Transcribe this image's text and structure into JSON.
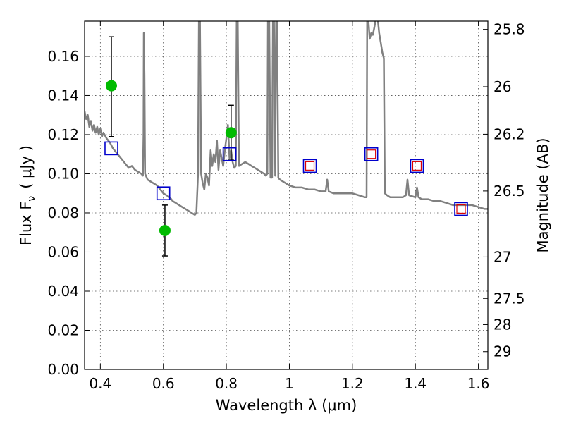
{
  "chart_data": {
    "type": "scatter",
    "title": "",
    "xlabel": "Wavelength  λ (μm)",
    "ylabel": "Flux  F",
    "ylabel_sub": "ν",
    "ylabel_unit": "( μJy )",
    "ylabel_right": "Magnitude (AB)",
    "xlim": [
      0.35,
      1.63
    ],
    "ylim": [
      0.0,
      0.178
    ],
    "x_ticks": [
      0.4,
      0.6,
      0.8,
      1.0,
      1.2,
      1.4,
      1.6
    ],
    "x_tick_labels": [
      "0.4",
      "0.6",
      "0.8",
      "1",
      "1.2",
      "1.4",
      "1.6"
    ],
    "y_ticks": [
      0.0,
      0.02,
      0.04,
      0.06,
      0.08,
      0.1,
      0.12,
      0.14,
      0.16
    ],
    "y_tick_labels": [
      "0.00",
      "0.02",
      "0.04",
      "0.06",
      "0.08",
      "0.10",
      "0.12",
      "0.14",
      "0.16"
    ],
    "right_ticks": [
      {
        "label": "25.8",
        "flux": 0.1738
      },
      {
        "label": "26",
        "flux": 0.1445
      },
      {
        "label": "26.2",
        "flux": 0.1202
      },
      {
        "label": "26.5",
        "flux": 0.0912
      },
      {
        "label": "27",
        "flux": 0.0575
      },
      {
        "label": "27.5",
        "flux": 0.0363
      },
      {
        "label": "28",
        "flux": 0.0229
      },
      {
        "label": "29",
        "flux": 0.0091
      }
    ],
    "grid": true,
    "colors": {
      "model": "#808080",
      "observed": "#00bb00",
      "model_photometry": "#0000cc",
      "inner_square": "#dd0000",
      "errorbar": "#000000"
    },
    "series": [
      {
        "kind": "line",
        "points": [
          [
            0.35,
            0.132
          ],
          [
            0.355,
            0.128
          ],
          [
            0.36,
            0.13
          ],
          [
            0.365,
            0.124
          ],
          [
            0.37,
            0.127
          ],
          [
            0.375,
            0.122
          ],
          [
            0.38,
            0.125
          ],
          [
            0.385,
            0.121
          ],
          [
            0.39,
            0.124
          ],
          [
            0.395,
            0.12
          ],
          [
            0.4,
            0.123
          ],
          [
            0.405,
            0.119
          ],
          [
            0.41,
            0.121
          ],
          [
            0.42,
            0.118
          ],
          [
            0.43,
            0.116
          ],
          [
            0.44,
            0.113
          ],
          [
            0.45,
            0.111
          ],
          [
            0.46,
            0.109
          ],
          [
            0.47,
            0.107
          ],
          [
            0.48,
            0.105
          ],
          [
            0.49,
            0.103
          ],
          [
            0.5,
            0.104
          ],
          [
            0.51,
            0.102
          ],
          [
            0.52,
            0.101
          ],
          [
            0.53,
            0.1
          ],
          [
            0.535,
            0.099
          ],
          [
            0.537,
            0.12
          ],
          [
            0.538,
            0.172
          ],
          [
            0.54,
            0.15
          ],
          [
            0.542,
            0.1
          ],
          [
            0.55,
            0.097
          ],
          [
            0.56,
            0.096
          ],
          [
            0.57,
            0.095
          ],
          [
            0.58,
            0.094
          ],
          [
            0.59,
            0.092
          ],
          [
            0.6,
            0.09
          ],
          [
            0.61,
            0.089
          ],
          [
            0.62,
            0.088
          ],
          [
            0.63,
            0.086
          ],
          [
            0.64,
            0.085
          ],
          [
            0.65,
            0.084
          ],
          [
            0.66,
            0.083
          ],
          [
            0.67,
            0.082
          ],
          [
            0.68,
            0.081
          ],
          [
            0.69,
            0.08
          ],
          [
            0.7,
            0.079
          ],
          [
            0.705,
            0.08
          ],
          [
            0.71,
            0.1
          ],
          [
            0.713,
            0.18
          ],
          [
            0.716,
            0.18
          ],
          [
            0.72,
            0.1
          ],
          [
            0.725,
            0.095
          ],
          [
            0.73,
            0.092
          ],
          [
            0.735,
            0.1
          ],
          [
            0.74,
            0.098
          ],
          [
            0.745,
            0.094
          ],
          [
            0.75,
            0.112
          ],
          [
            0.755,
            0.104
          ],
          [
            0.76,
            0.11
          ],
          [
            0.765,
            0.106
          ],
          [
            0.77,
            0.117
          ],
          [
            0.775,
            0.102
          ],
          [
            0.78,
            0.112
          ],
          [
            0.785,
            0.108
          ],
          [
            0.79,
            0.104
          ],
          [
            0.795,
            0.112
          ],
          [
            0.8,
            0.118
          ],
          [
            0.805,
            0.125
          ],
          [
            0.81,
            0.108
          ],
          [
            0.815,
            0.112
          ],
          [
            0.82,
            0.106
          ],
          [
            0.825,
            0.103
          ],
          [
            0.83,
            0.104
          ],
          [
            0.833,
            0.18
          ],
          [
            0.836,
            0.18
          ],
          [
            0.84,
            0.104
          ],
          [
            0.85,
            0.105
          ],
          [
            0.86,
            0.106
          ],
          [
            0.87,
            0.105
          ],
          [
            0.88,
            0.104
          ],
          [
            0.89,
            0.103
          ],
          [
            0.9,
            0.102
          ],
          [
            0.91,
            0.101
          ],
          [
            0.92,
            0.1
          ],
          [
            0.925,
            0.099
          ],
          [
            0.93,
            0.1
          ],
          [
            0.932,
            0.18
          ],
          [
            0.936,
            0.18
          ],
          [
            0.94,
            0.098
          ],
          [
            0.945,
            0.098
          ],
          [
            0.948,
            0.18
          ],
          [
            0.951,
            0.18
          ],
          [
            0.955,
            0.099
          ],
          [
            0.958,
            0.18
          ],
          [
            0.961,
            0.18
          ],
          [
            0.965,
            0.098
          ],
          [
            0.97,
            0.097
          ],
          [
            0.98,
            0.096
          ],
          [
            0.99,
            0.095
          ],
          [
            1.0,
            0.094
          ],
          [
            1.02,
            0.093
          ],
          [
            1.04,
            0.093
          ],
          [
            1.06,
            0.092
          ],
          [
            1.08,
            0.092
          ],
          [
            1.1,
            0.091
          ],
          [
            1.115,
            0.091
          ],
          [
            1.12,
            0.097
          ],
          [
            1.125,
            0.091
          ],
          [
            1.14,
            0.09
          ],
          [
            1.16,
            0.09
          ],
          [
            1.18,
            0.09
          ],
          [
            1.2,
            0.09
          ],
          [
            1.22,
            0.089
          ],
          [
            1.24,
            0.088
          ],
          [
            1.245,
            0.088
          ],
          [
            1.247,
            0.18
          ],
          [
            1.25,
            0.18
          ],
          [
            1.255,
            0.169
          ],
          [
            1.26,
            0.172
          ],
          [
            1.265,
            0.171
          ],
          [
            1.27,
            0.175
          ],
          [
            1.275,
            0.18
          ],
          [
            1.28,
            0.18
          ],
          [
            1.285,
            0.172
          ],
          [
            1.29,
            0.167
          ],
          [
            1.295,
            0.162
          ],
          [
            1.3,
            0.159
          ],
          [
            1.303,
            0.09
          ],
          [
            1.31,
            0.089
          ],
          [
            1.32,
            0.088
          ],
          [
            1.34,
            0.088
          ],
          [
            1.36,
            0.088
          ],
          [
            1.37,
            0.089
          ],
          [
            1.375,
            0.097
          ],
          [
            1.38,
            0.089
          ],
          [
            1.4,
            0.088
          ],
          [
            1.405,
            0.093
          ],
          [
            1.41,
            0.088
          ],
          [
            1.42,
            0.087
          ],
          [
            1.44,
            0.087
          ],
          [
            1.46,
            0.086
          ],
          [
            1.48,
            0.086
          ],
          [
            1.5,
            0.085
          ],
          [
            1.52,
            0.084
          ],
          [
            1.54,
            0.084
          ],
          [
            1.56,
            0.084
          ],
          [
            1.58,
            0.084
          ],
          [
            1.6,
            0.083
          ],
          [
            1.62,
            0.082
          ],
          [
            1.63,
            0.082
          ]
        ]
      },
      {
        "kind": "errorbar_points",
        "points": [
          {
            "x": 0.435,
            "y": 0.145,
            "ylo": 0.119,
            "yhi": 0.17
          },
          {
            "x": 0.605,
            "y": 0.071,
            "ylo": 0.058,
            "yhi": 0.084
          },
          {
            "x": 0.815,
            "y": 0.121,
            "ylo": 0.107,
            "yhi": 0.135
          }
        ]
      },
      {
        "kind": "model_squares",
        "points": [
          {
            "x": 0.435,
            "y": 0.113,
            "inner": false
          },
          {
            "x": 0.6,
            "y": 0.09,
            "inner": false
          },
          {
            "x": 0.81,
            "y": 0.11,
            "inner": false
          },
          {
            "x": 1.065,
            "y": 0.104,
            "inner": true
          },
          {
            "x": 1.26,
            "y": 0.11,
            "inner": true
          },
          {
            "x": 1.405,
            "y": 0.104,
            "inner": true
          },
          {
            "x": 1.545,
            "y": 0.082,
            "inner": true
          }
        ]
      }
    ]
  }
}
